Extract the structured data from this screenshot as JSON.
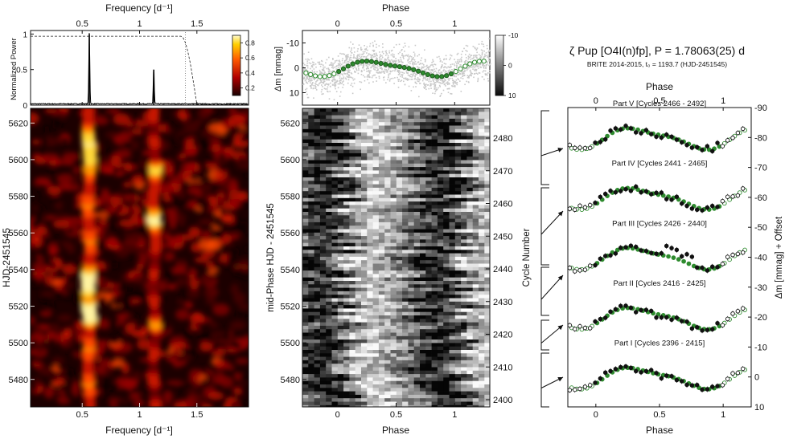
{
  "title": {
    "main": "ζ Pup [O4I(n)fp], P = 1.78063(25) d",
    "sub": "BRITE 2014-2015, t₀ = 1193.7 (HJD-2451545)"
  },
  "colors": {
    "green": "#2e8b2e",
    "black": "#111111",
    "grey_points": "#c8c8c8"
  },
  "chart_data": [
    {
      "id": "power-spectrum",
      "type": "line",
      "title": "",
      "xlabel": "Frequency [d⁻¹]",
      "ylabel": "Normalized Power",
      "xlim": [
        0.05,
        1.95
      ],
      "ylim": [
        0,
        1.05
      ],
      "x_ticks": [
        0.5,
        1,
        1.5
      ],
      "y_ticks": [
        0,
        0.5,
        1
      ],
      "peaks": [
        {
          "frequency": 0.562,
          "power": 1.0
        },
        {
          "frequency": 1.124,
          "power": 0.5
        }
      ],
      "window_function": {
        "plateau": 0.97,
        "drop_start": 1.36,
        "drop_end": 1.5
      },
      "nyquist_marker": 1.4
    },
    {
      "id": "time-frequency-map",
      "type": "heatmap",
      "xlabel": "Frequency [d⁻¹]",
      "ylabel": "HJD-2451545",
      "xlim": [
        0.05,
        1.95
      ],
      "ylim": [
        5465,
        5628
      ],
      "x_ticks": [
        0.5,
        1,
        1.5
      ],
      "y_ticks": [
        5480,
        5500,
        5520,
        5540,
        5560,
        5580,
        5600,
        5620
      ],
      "colorbar": {
        "ticks": [
          0.2,
          0.4,
          0.6,
          0.8
        ],
        "range": [
          0.1,
          0.9
        ]
      }
    },
    {
      "id": "phased-lightcurve",
      "type": "scatter",
      "xlabel": "Phase",
      "ylabel": "Δm [mmag]",
      "xlim": [
        -0.3,
        1.3
      ],
      "ylim": [
        15,
        -15
      ],
      "x_ticks": [
        0,
        0.5,
        1
      ],
      "y_ticks": [
        -10,
        0,
        10
      ],
      "colorbar": {
        "ticks": [
          -10,
          0,
          10
        ]
      }
    },
    {
      "id": "dynamic-lightcurve",
      "type": "heatmap",
      "xlabel": "Phase",
      "ylabel": "mid-Phase HJD - 2451545",
      "y2label": "Cycle Number",
      "xlim": [
        -0.3,
        1.3
      ],
      "ylim": [
        5465,
        5628
      ],
      "x_ticks": [
        0,
        0.5,
        1
      ],
      "y_ticks": [
        5480,
        5500,
        5520,
        5540,
        5560,
        5580,
        5600,
        5620
      ],
      "y2_ticks": [
        2400,
        2410,
        2420,
        2430,
        2440,
        2450,
        2460,
        2470,
        2480
      ]
    },
    {
      "id": "binned-lightcurves",
      "type": "scatter",
      "xlabel": "Phase",
      "ylabel": "Δm [mmag] + Offset",
      "xlim": [
        -0.22,
        1.22
      ],
      "ylim": [
        10,
        -90
      ],
      "x_ticks": [
        0,
        0.5,
        1
      ],
      "y_ticks": [
        10,
        0,
        -10,
        -20,
        -30,
        -40,
        -50,
        -60,
        -70,
        -80,
        -90
      ],
      "parts": [
        {
          "label": "Part V [Cycles 2466 - 2492]",
          "offset": -80
        },
        {
          "label": "Part IV [Cycles 2441 - 2465]",
          "offset": -60
        },
        {
          "label": "Part III [Cycles 2426 - 2440]",
          "offset": -40
        },
        {
          "label": "Part II [Cycles 2416 - 2425]",
          "offset": -20
        },
        {
          "label": "Part I [Cycles 2396 - 2415]",
          "offset": 0
        }
      ]
    }
  ]
}
